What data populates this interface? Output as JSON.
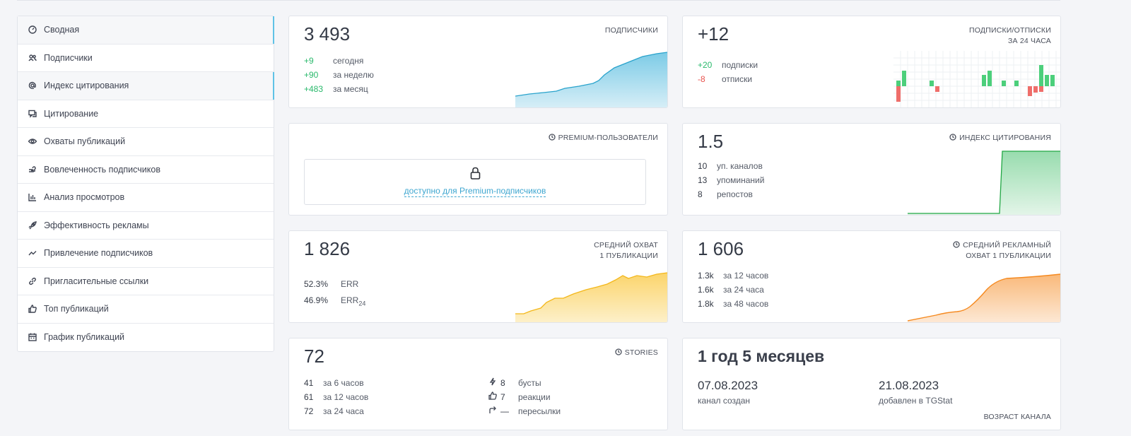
{
  "sidebar": {
    "items": [
      {
        "label": "Сводная",
        "icon": "dashboard-icon"
      },
      {
        "label": "Подписчики",
        "icon": "users-icon"
      },
      {
        "label": "Индекс цитирования",
        "icon": "at-icon"
      },
      {
        "label": "Цитирование",
        "icon": "quote-icon"
      },
      {
        "label": "Охваты публикаций",
        "icon": "eye-icon"
      },
      {
        "label": "Вовлеченность подписчиков",
        "icon": "heart-hand-icon"
      },
      {
        "label": "Анализ просмотров",
        "icon": "bar-chart-icon"
      },
      {
        "label": "Эффективность рекламы",
        "icon": "rocket-icon"
      },
      {
        "label": "Привлечение подписчиков",
        "icon": "trend-icon"
      },
      {
        "label": "Пригласительные ссылки",
        "icon": "link-icon"
      },
      {
        "label": "Топ публикаций",
        "icon": "thumbs-up-icon"
      },
      {
        "label": "График публикаций",
        "icon": "calendar-icon"
      }
    ]
  },
  "subscribers": {
    "value": "3 493",
    "title": "ПОДПИСЧИКИ",
    "rows": [
      {
        "v": "+9",
        "l": "сегодня"
      },
      {
        "v": "+90",
        "l": "за неделю"
      },
      {
        "v": "+483",
        "l": "за месяц"
      }
    ]
  },
  "subs_unsubs": {
    "value": "+12",
    "title1": "ПОДПИСКИ/ОТПИСКИ",
    "title2": "ЗА 24 ЧАСА",
    "rows": [
      {
        "v": "+20",
        "l": "подписки"
      },
      {
        "v": "-8",
        "l": "отписки"
      }
    ]
  },
  "premium": {
    "title": "PREMIUM-ПОЛЬЗОВАТЕЛИ",
    "lock_text": "доступно для Premium-подписчиков"
  },
  "citation": {
    "value": "1.5",
    "title": "ИНДЕКС ЦИТИРОВАНИЯ",
    "rows": [
      {
        "v": "10",
        "l": "уп. каналов"
      },
      {
        "v": "13",
        "l": "упоминаний"
      },
      {
        "v": "8",
        "l": "репостов"
      }
    ]
  },
  "reach": {
    "value": "1 826",
    "title1": "СРЕДНИЙ ОХВАТ",
    "title2": "1 ПУБЛИКАЦИИ",
    "rows": [
      {
        "v": "52.3%",
        "l": "ERR"
      },
      {
        "v": "46.9%",
        "l": "ERR",
        "sub": "24"
      }
    ]
  },
  "ad_reach": {
    "value": "1 606",
    "title1": "СРЕДНИЙ РЕКЛАМНЫЙ",
    "title2": "ОХВАТ 1 ПУБЛИКАЦИИ",
    "rows": [
      {
        "v": "1.3k",
        "l": "за 12 часов"
      },
      {
        "v": "1.6k",
        "l": "за 24 часа"
      },
      {
        "v": "1.8k",
        "l": "за 48 часов"
      }
    ]
  },
  "stories": {
    "value": "72",
    "title": "STORIES",
    "rows": [
      {
        "v": "41",
        "l": "за 6 часов"
      },
      {
        "v": "61",
        "l": "за 12 часов"
      },
      {
        "v": "72",
        "l": "за 24 часа"
      }
    ],
    "rows2": [
      {
        "icon": "boost-icon",
        "v": "8",
        "l": "бусты"
      },
      {
        "icon": "thumbs-up-icon",
        "v": "7",
        "l": "реакции"
      },
      {
        "icon": "forward-icon",
        "v": "—",
        "l": "пересылки"
      }
    ]
  },
  "age": {
    "value": "1 год 5 месяцев",
    "created_date": "07.08.2023",
    "created_label": "канал создан",
    "added_date": "21.08.2023",
    "added_label": "добавлен в TGStat",
    "footer": "ВОЗРАСТ КАНАЛА"
  },
  "colors": {
    "green": "#2ab96c",
    "red": "#e8534e",
    "accent": "#3ea6d0",
    "chart_blue": "#2aa3cc",
    "chart_green": "#22a745",
    "chart_yellow": "#f3b71a",
    "chart_orange": "#f5891f"
  }
}
